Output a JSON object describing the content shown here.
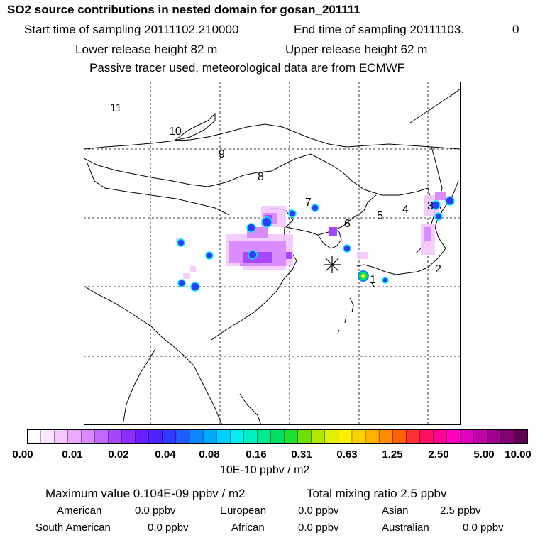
{
  "header": {
    "title": "SO2 source contributions in nested domain for gosan_201111",
    "start_label": "Start time of sampling 20111102.210000",
    "end_label": "End time of sampling 20111103.",
    "end_suffix": "0",
    "lower_height": "Lower release height   82 m",
    "upper_height": "Upper release height   62 m",
    "tracer_note": "Passive tracer used, meteorological data are from ECMWF"
  },
  "map": {
    "region_numbers": [
      "1",
      "2",
      "3",
      "4",
      "5",
      "6",
      "7",
      "8",
      "9",
      "10",
      "11"
    ],
    "receptor_marker": "gosan"
  },
  "colorbar": {
    "colors": [
      "#ffffff",
      "#fbe6ff",
      "#f4c8ff",
      "#eaa9ff",
      "#d98cff",
      "#c268ff",
      "#a846ff",
      "#8a2eff",
      "#6a1dff",
      "#4c22ff",
      "#2f3cff",
      "#1e5cff",
      "#0d86ff",
      "#00aaff",
      "#00d0ff",
      "#00f0f0",
      "#00f0c0",
      "#00e890",
      "#00e060",
      "#20e030",
      "#70e000",
      "#b0e800",
      "#e0f000",
      "#ffee00",
      "#ffd000",
      "#ffb000",
      "#ff8c00",
      "#ff6000",
      "#ff3030",
      "#ff1060",
      "#ff0090",
      "#ff00c0",
      "#e000c0",
      "#c000a8",
      "#a00090",
      "#800070",
      "#600050"
    ],
    "ticks": [
      "0.00",
      "0.01",
      "0.02",
      "0.04",
      "0.08",
      "0.16",
      "0.31",
      "0.63",
      "1.25",
      "2.50",
      "5.00",
      "10.00"
    ],
    "units": "10E-10 ppbv / m2"
  },
  "summary": {
    "max_value": "Maximum value  0.104E-09 ppbv / m2",
    "total_mixing": "Total mixing ratio       2.5 ppbv",
    "american_label": "American",
    "american_value": "0.0 ppbv",
    "european_label": "European",
    "european_value": "0.0 ppbv",
    "asian_label": "Asian",
    "asian_value": "2.5 ppbv",
    "south_american_label": "South American",
    "south_american_value": "0.0 ppbv",
    "african_label": "African",
    "african_value": "0.0 ppbv",
    "australian_label": "Australian",
    "australian_value": "0.0 ppbv"
  }
}
